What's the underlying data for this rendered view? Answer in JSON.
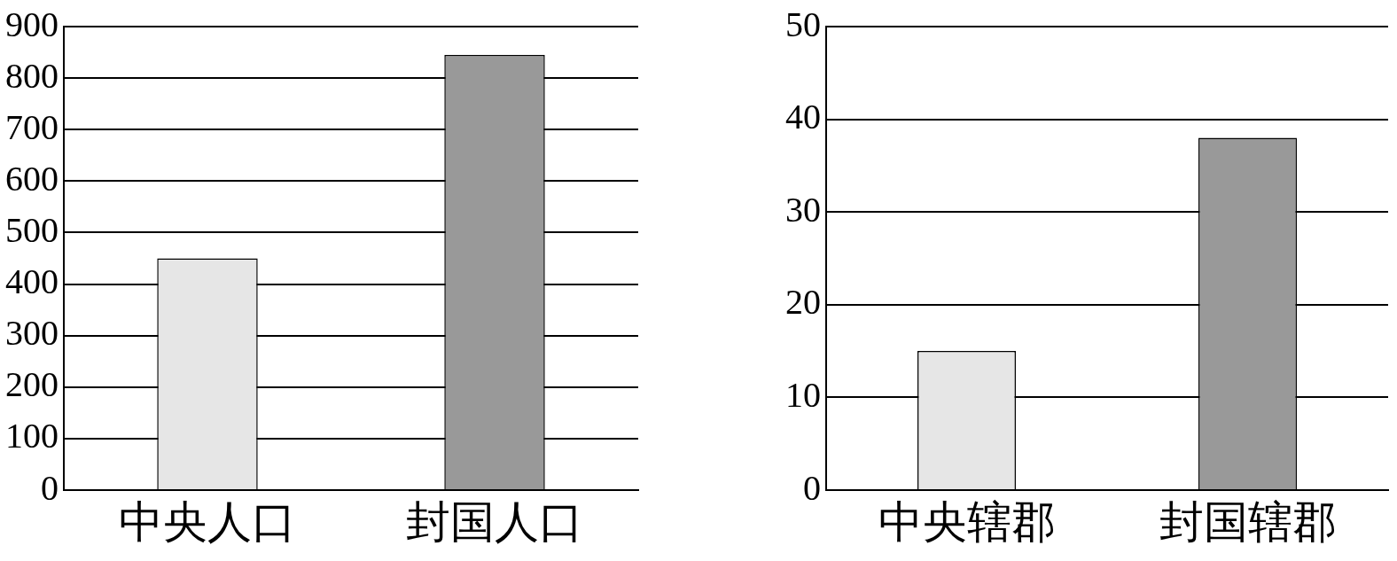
{
  "chart_data": [
    {
      "type": "bar",
      "categories": [
        "中央人口",
        "封国人口"
      ],
      "values": [
        450,
        845
      ],
      "colors": [
        "#e6e6e6",
        "#999999"
      ],
      "ylim": [
        0,
        900
      ],
      "yticks": [
        0,
        100,
        200,
        300,
        400,
        500,
        600,
        700,
        800,
        900
      ],
      "grid": "y"
    },
    {
      "type": "bar",
      "categories": [
        "中央辖郡",
        "封国辖郡"
      ],
      "values": [
        15,
        38
      ],
      "colors": [
        "#e6e6e6",
        "#999999"
      ],
      "ylim": [
        0,
        50
      ],
      "yticks": [
        0,
        10,
        20,
        30,
        40,
        50
      ],
      "grid": "y"
    }
  ]
}
